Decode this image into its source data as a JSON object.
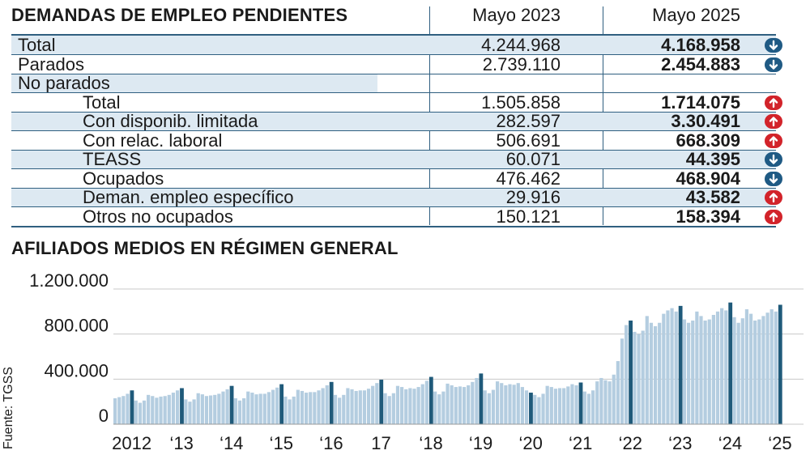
{
  "table": {
    "title": "DEMANDAS DE EMPLEO PENDIENTES",
    "col1": "Mayo 2023",
    "col2": "Mayo 2025",
    "rows": [
      {
        "label": "Total",
        "v1": "4.244.968",
        "v2": "4.168.958",
        "trend": "down"
      },
      {
        "label": "Parados",
        "v1": "2.739.110",
        "v2": "2.454.883",
        "trend": "down"
      },
      {
        "label": "No parados",
        "v1": "",
        "v2": "",
        "trend": "none"
      },
      {
        "label": "Total",
        "v1": "1.505.858",
        "v2": "1.714.075",
        "trend": "up"
      },
      {
        "label": "Con disponib. limitada",
        "v1": "282.597",
        "v2": "3.30.491",
        "trend": "up"
      },
      {
        "label": "Con relac. laboral",
        "v1": "506.691",
        "v2": "668.309",
        "trend": "up"
      },
      {
        "label": "TEASS",
        "v1": "60.071",
        "v2": "44.395",
        "trend": "down"
      },
      {
        "label": "Ocupados",
        "v1": "476.462",
        "v2": "468.904",
        "trend": "down"
      },
      {
        "label": "Deman. empleo específico",
        "v1": "29.916",
        "v2": "43.582",
        "trend": "up"
      },
      {
        "label": "Otros no ocupados",
        "v1": "150.121",
        "v2": "158.394",
        "trend": "up"
      }
    ]
  },
  "icons": {
    "down": "arrow-down-circle-icon",
    "up": "arrow-up-circle-icon"
  },
  "colors": {
    "accent": "#2f5f80",
    "down": "#1f5a84",
    "up": "#d2232a",
    "shade": "#dde9f2",
    "bar": "#b4cde0",
    "bar_highlight": "#1f5a7a"
  },
  "chart_data": {
    "type": "bar",
    "title": "AFILIADOS MEDIOS EN RÉGIMEN GENERAL",
    "source": "Fuente: TGSS",
    "ylim": [
      0,
      1200000
    ],
    "yticks": [
      0,
      400000,
      800000,
      1200000
    ],
    "ytick_labels": [
      "0",
      "400.000",
      "800.000",
      "1.200.000"
    ],
    "xtick_labels": [
      "2012",
      "‘13",
      "‘14",
      "‘15",
      "‘16",
      "17",
      "‘18",
      "‘19",
      "‘20",
      "‘21",
      "‘22",
      "‘23",
      "‘24",
      "‘25"
    ],
    "grid": true,
    "highlight": "May of each year",
    "years": [
      {
        "year": 2012,
        "values": [
          230000,
          240000,
          250000,
          270000,
          300000,
          210000,
          190000,
          210000,
          260000,
          250000,
          235000,
          245000
        ]
      },
      {
        "year": 2013,
        "values": [
          250000,
          260000,
          280000,
          300000,
          320000,
          220000,
          200000,
          220000,
          275000,
          265000,
          250000,
          255000
        ]
      },
      {
        "year": 2014,
        "values": [
          260000,
          270000,
          290000,
          310000,
          340000,
          230000,
          210000,
          230000,
          290000,
          280000,
          265000,
          270000
        ]
      },
      {
        "year": 2015,
        "values": [
          270000,
          285000,
          305000,
          325000,
          355000,
          245000,
          220000,
          245000,
          305000,
          295000,
          280000,
          285000
        ]
      },
      {
        "year": 2016,
        "values": [
          285000,
          300000,
          320000,
          345000,
          375000,
          260000,
          235000,
          260000,
          320000,
          310000,
          295000,
          300000
        ]
      },
      {
        "year": 2017,
        "values": [
          300000,
          315000,
          340000,
          365000,
          395000,
          275000,
          250000,
          275000,
          340000,
          330000,
          310000,
          320000
        ]
      },
      {
        "year": 2018,
        "values": [
          315000,
          330000,
          355000,
          385000,
          420000,
          290000,
          265000,
          290000,
          360000,
          345000,
          330000,
          335000
        ]
      },
      {
        "year": 2019,
        "values": [
          330000,
          345000,
          375000,
          410000,
          450000,
          300000,
          275000,
          305000,
          380000,
          365000,
          345000,
          355000
        ]
      },
      {
        "year": 2020,
        "values": [
          350000,
          365000,
          330000,
          300000,
          280000,
          260000,
          240000,
          270000,
          340000,
          330000,
          315000,
          320000
        ]
      },
      {
        "year": 2021,
        "values": [
          320000,
          335000,
          355000,
          345000,
          370000,
          290000,
          270000,
          300000,
          380000,
          410000,
          390000,
          380000
        ]
      },
      {
        "year": 2022,
        "values": [
          440000,
          560000,
          760000,
          880000,
          920000,
          820000,
          800000,
          830000,
          960000,
          900000,
          870000,
          900000
        ]
      },
      {
        "year": 2023,
        "values": [
          980000,
          1010000,
          1030000,
          1000000,
          1050000,
          930000,
          900000,
          920000,
          1000000,
          960000,
          920000,
          930000
        ]
      },
      {
        "year": 2024,
        "values": [
          970000,
          1000000,
          1030000,
          1010000,
          1080000,
          950000,
          900000,
          940000,
          1020000,
          980000,
          920000,
          930000
        ]
      },
      {
        "year": 2025,
        "values": [
          960000,
          990000,
          1020000,
          1000000,
          1060000
        ]
      }
    ]
  }
}
